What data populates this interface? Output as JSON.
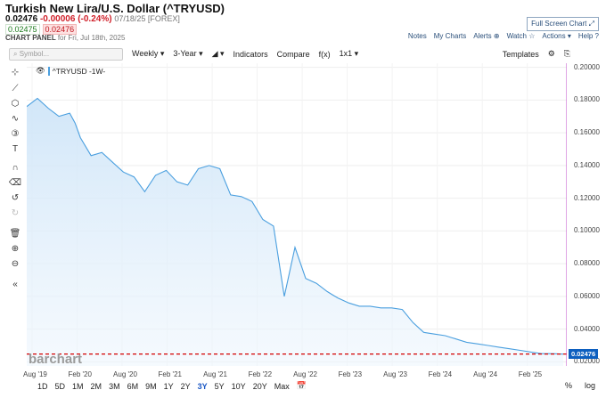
{
  "header": {
    "title": "Turkish New Lira/U.S. Dollar (^TRYUSD)",
    "last": "0.02476",
    "change": "-0.00006 (-0.24%)",
    "meta": "07/18/25 [FOREX]",
    "bid": "0.02475",
    "ask": "0.02476",
    "panel_label": "CHART PANEL",
    "panel_date": "for Fri, Jul 18th, 2025",
    "fullscreen": "Full Screen Chart",
    "notes": "Notes",
    "my_charts": "My Charts",
    "alerts": "Alerts",
    "watch": "Watch",
    "actions": "Actions",
    "help": "Help"
  },
  "toolbar": {
    "symbol_placeholder": "Symbol...",
    "interval": "Weekly",
    "range": "3-Year",
    "indicators": "Indicators",
    "compare": "Compare",
    "fx": "f(x)",
    "layout": "1x1",
    "templates": "Templates"
  },
  "legend": {
    "series": "^TRYUSD -1W-"
  },
  "watermark": "barchart",
  "last_price_label": "0.02476",
  "bottom": {
    "periods": [
      "1D",
      "5D",
      "1M",
      "2M",
      "3M",
      "6M",
      "9M",
      "1Y",
      "2Y",
      "3Y",
      "5Y",
      "10Y",
      "20Y",
      "Max"
    ],
    "selected": "3Y",
    "percent": "%",
    "log": "log"
  },
  "chart_data": {
    "type": "area",
    "yticks": [
      "0.20000",
      "0.18000",
      "0.16000",
      "0.14000",
      "0.12000",
      "0.10000",
      "0.08000",
      "0.06000",
      "0.04000",
      "0.02000"
    ],
    "xticks": [
      "Aug '19",
      "Feb '20",
      "Aug '20",
      "Feb '21",
      "Aug '21",
      "Feb '22",
      "Aug '22",
      "Feb '23",
      "Aug '23",
      "Feb '24",
      "Aug '24",
      "Feb '25"
    ],
    "ylim": [
      0.0175,
      0.2025
    ],
    "x": [
      0,
      2,
      4,
      6,
      8,
      9,
      10,
      12,
      14,
      16,
      18,
      20,
      22,
      24,
      26,
      28,
      30,
      32,
      34,
      36,
      38,
      40,
      42,
      44,
      46,
      48,
      50,
      52,
      54,
      56,
      57,
      58,
      60,
      62,
      64,
      66,
      68,
      70,
      72,
      74,
      76,
      78,
      80,
      82,
      84,
      86,
      88,
      90,
      92,
      94,
      96,
      98,
      100
    ],
    "values": [
      0.176,
      0.181,
      0.175,
      0.17,
      0.172,
      0.166,
      0.157,
      0.146,
      0.148,
      0.142,
      0.136,
      0.133,
      0.124,
      0.134,
      0.137,
      0.13,
      0.128,
      0.138,
      0.14,
      0.138,
      0.122,
      0.121,
      0.118,
      0.107,
      0.103,
      0.06,
      0.09,
      0.071,
      0.068,
      0.063,
      0.061,
      0.059,
      0.056,
      0.054,
      0.054,
      0.053,
      0.053,
      0.052,
      0.044,
      0.038,
      0.037,
      0.036,
      0.034,
      0.032,
      0.031,
      0.03,
      0.029,
      0.028,
      0.027,
      0.026,
      0.025,
      0.025,
      0.02476
    ],
    "reference_line": 0.02476
  },
  "colors": {
    "line": "#4a9fdf",
    "fill_top": "#cfe5f8",
    "ref": "#d40000",
    "label": "#0d5fbf"
  }
}
